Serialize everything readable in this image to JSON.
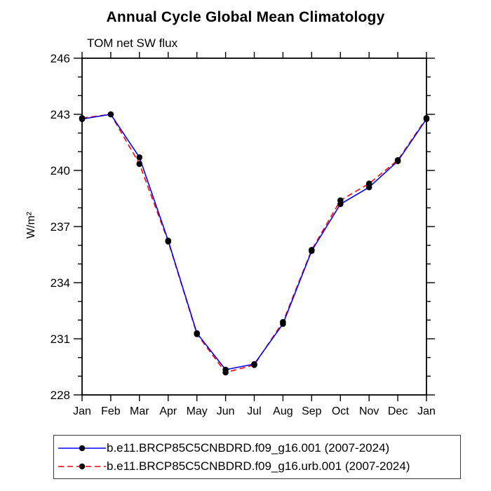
{
  "figure": {
    "title": "Annual Cycle Global Mean Climatology",
    "subtitle": "TOM net SW flux",
    "ylabel": "W/m²"
  },
  "chart_data": {
    "type": "line",
    "title": "Annual Cycle Global Mean Climatology",
    "subtitle": "TOM net SW flux",
    "xlabel": "",
    "ylabel": "W/m²",
    "categories": [
      "Jan",
      "Feb",
      "Mar",
      "Apr",
      "May",
      "Jun",
      "Jul",
      "Aug",
      "Sep",
      "Oct",
      "Nov",
      "Dec",
      "Jan"
    ],
    "ylim": [
      228,
      246
    ],
    "ytick_major": [
      228,
      231,
      234,
      237,
      240,
      243,
      246
    ],
    "ytick_minor_step": 1,
    "grid": false,
    "legend_position": "bottom",
    "series": [
      {
        "name": "b.e11.BRCP85C5CNBDRD.f09_g16.001 (2007-2024)",
        "color": "#0000ff",
        "dash": "solid",
        "marker": "circle",
        "marker_color": "#000000",
        "values": [
          242.75,
          243.0,
          240.7,
          236.25,
          231.3,
          229.35,
          229.65,
          231.8,
          235.7,
          238.2,
          239.1,
          240.5,
          242.75
        ]
      },
      {
        "name": "b.e11.BRCP85C5CNBDRD.f09_g16.urb.001 (2007-2024)",
        "color": "#ff0000",
        "dash": "dashed",
        "marker": "circle",
        "marker_color": "#000000",
        "values": [
          242.8,
          243.0,
          240.35,
          236.2,
          231.25,
          229.2,
          229.6,
          231.9,
          235.75,
          238.4,
          239.3,
          240.55,
          242.8
        ]
      }
    ]
  }
}
